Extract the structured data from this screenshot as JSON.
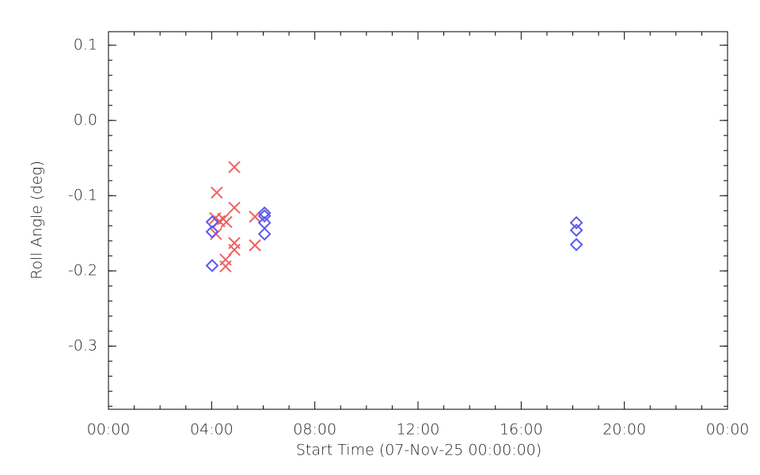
{
  "chart_data": {
    "type": "scatter",
    "x_label": "Start Time (07-Nov-25 00:00:00)",
    "y_label": "Roll Angle (deg)",
    "xlim": [
      0,
      24
    ],
    "xticks": [
      {
        "value": 0,
        "label": "00:00"
      },
      {
        "value": 4,
        "label": "04:00"
      },
      {
        "value": 8,
        "label": "08:00"
      },
      {
        "value": 12,
        "label": "12:00"
      },
      {
        "value": 16,
        "label": "16:00"
      },
      {
        "value": 20,
        "label": "20:00"
      },
      {
        "value": 24,
        "label": "00:00"
      }
    ],
    "ylim": [
      -0.384,
      0.118
    ],
    "yticks": [
      0.1,
      {
        "value": 0,
        "label": "0.0"
      },
      -0.1,
      -0.2,
      -0.3
    ],
    "series": [
      {
        "marker": "x",
        "color": "#f06060",
        "x": [
          4.88,
          4.2,
          4.14,
          4.3,
          4.45,
          4.57,
          4.17,
          4.88,
          5.68,
          4.88,
          4.88,
          5.68,
          4.54,
          4.54
        ],
        "values": [
          -0.062,
          -0.096,
          -0.13,
          -0.134,
          -0.131,
          -0.135,
          -0.151,
          -0.116,
          -0.128,
          -0.163,
          -0.172,
          -0.166,
          -0.185,
          -0.194
        ]
      },
      {
        "marker": "diamond",
        "color": "#5a5aee",
        "x": [
          4.02,
          4.02,
          4.02,
          6.05,
          6.05,
          6.05,
          6.05,
          18.14,
          18.14,
          18.14
        ],
        "values": [
          -0.135,
          -0.148,
          -0.193,
          -0.123,
          -0.127,
          -0.136,
          -0.151,
          -0.136,
          -0.146,
          -0.165
        ]
      }
    ]
  }
}
